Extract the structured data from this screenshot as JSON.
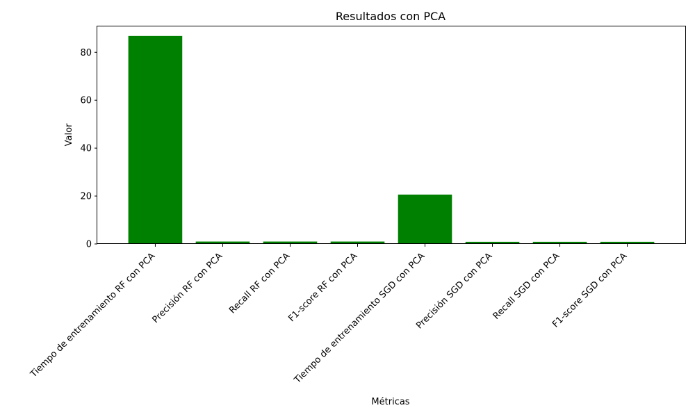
{
  "chart_data": {
    "type": "bar",
    "title": "Resultados con PCA",
    "xlabel": "Métricas",
    "ylabel": "Valor",
    "categories": [
      "Tiempo de entrenamiento RF con PCA",
      "Precisión RF con PCA",
      "Recall RF con PCA",
      "F1-score RF con PCA",
      "Tiempo de entrenamiento SGD con PCA",
      "Precisión SGD con PCA",
      "Recall SGD con PCA",
      "F1-score SGD con PCA"
    ],
    "values": [
      86.8,
      1.0,
      1.0,
      1.0,
      20.6,
      0.9,
      0.9,
      0.9
    ],
    "ylim": [
      0,
      91.1
    ],
    "yticks": [
      0,
      20,
      40,
      60,
      80
    ],
    "bar_color": "#008000",
    "grid": false,
    "legend": "none"
  }
}
